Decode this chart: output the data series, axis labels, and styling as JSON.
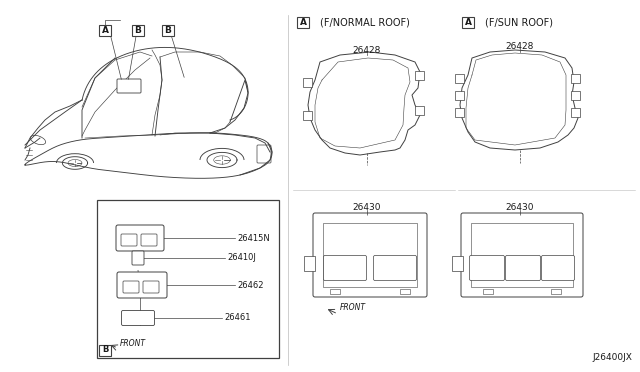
{
  "bg_color": "#ffffff",
  "diagram_code": "J26400JX",
  "section_a_normal_label": "(F/NORMAL ROOF)",
  "section_a_sun_label": "(F/SUN ROOF)",
  "part_26428_left": "26428",
  "part_26430_left": "26430",
  "part_26428_right": "26428",
  "part_26430_right": "26430",
  "part_26415N": "26415N",
  "part_26410J": "26410J",
  "part_26462": "26462",
  "part_26461": "26461",
  "front_label": "FRONT",
  "callout_A": "A",
  "callout_B": "B",
  "line_color": "#404040",
  "text_color": "#1a1a1a",
  "label_fontsize": 6.5,
  "title_fontsize": 7.0
}
